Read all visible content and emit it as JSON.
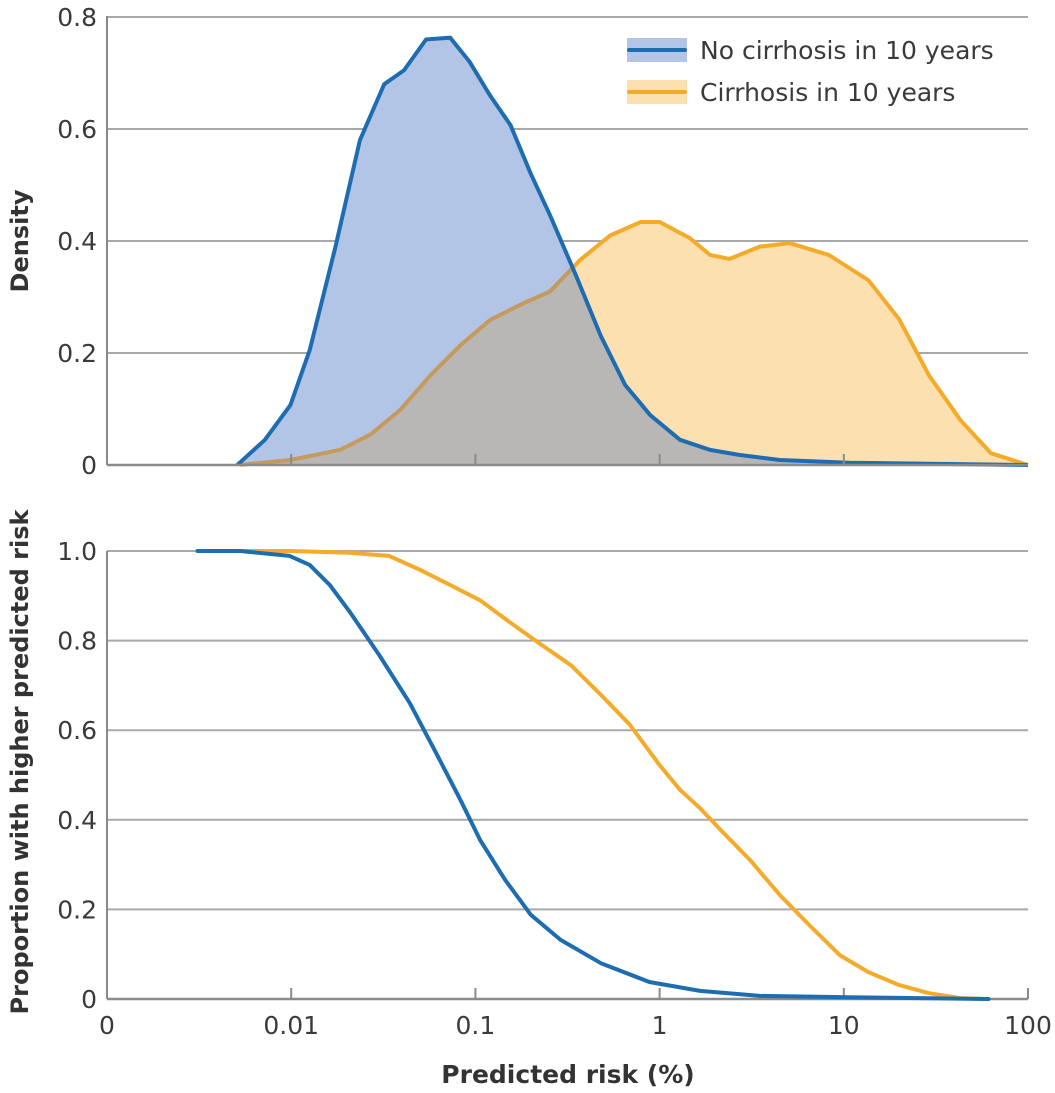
{
  "colors": {
    "no_cirrhosis_line": "#1e6db0",
    "no_cirrhosis_fill": "#b3c5e6",
    "cirrhosis_line": "#f5ab2a",
    "cirrhosis_fill": "#fde0b0",
    "overlap_fill": "#b9b6b6",
    "grid": "#a9a9a9"
  },
  "chart_data": [
    {
      "type": "area",
      "title": "",
      "xlabel": "",
      "ylabel": "Density",
      "xscale": "log",
      "xlim": [
        0.001,
        100
      ],
      "ylim": [
        0,
        0.8
      ],
      "yticks": [
        0,
        0.2,
        0.4,
        0.6,
        0.8
      ],
      "ytick_labels": [
        "0",
        "0.2",
        "0.4",
        "0.6",
        "0.8"
      ],
      "grid": true,
      "legend": {
        "position": "top-right",
        "entries": [
          "No cirrhosis in 10 years",
          "Cirrhosis in 10 years"
        ]
      },
      "series": [
        {
          "name": "No cirrhosis in 10 years",
          "x": [
            0.0051,
            0.0072,
            0.0099,
            0.0126,
            0.0174,
            0.0236,
            0.032,
            0.041,
            0.054,
            0.073,
            0.093,
            0.12,
            0.155,
            0.2,
            0.254,
            0.35,
            0.48,
            0.65,
            0.89,
            1.29,
            1.88,
            2.7,
            4.5,
            10.7,
            100
          ],
          "y": [
            0,
            0.045,
            0.107,
            0.205,
            0.39,
            0.58,
            0.68,
            0.705,
            0.76,
            0.763,
            0.72,
            0.66,
            0.607,
            0.52,
            0.446,
            0.34,
            0.23,
            0.143,
            0.089,
            0.045,
            0.027,
            0.018,
            0.009,
            0.004,
            0
          ]
        },
        {
          "name": "Cirrhosis in 10 years",
          "x": [
            0.0053,
            0.0099,
            0.0184,
            0.0268,
            0.039,
            0.057,
            0.083,
            0.12,
            0.175,
            0.254,
            0.37,
            0.54,
            0.79,
            1.0,
            1.46,
            1.88,
            2.4,
            3.5,
            5.1,
            8.3,
            13.6,
            20,
            29,
            43,
            63,
            100
          ],
          "y": [
            0,
            0.009,
            0.027,
            0.054,
            0.098,
            0.16,
            0.214,
            0.259,
            0.286,
            0.31,
            0.366,
            0.41,
            0.434,
            0.434,
            0.405,
            0.375,
            0.368,
            0.39,
            0.396,
            0.375,
            0.33,
            0.26,
            0.16,
            0.08,
            0.021,
            0
          ]
        }
      ]
    },
    {
      "type": "line",
      "title": "",
      "xlabel": "Predicted risk (%)",
      "ylabel": "Proportion with higher predicted risk",
      "xscale": "log",
      "xlim": [
        0.001,
        100
      ],
      "xticks": [
        0.001,
        0.01,
        0.1,
        1,
        10,
        100
      ],
      "xtick_labels": [
        "0",
        "0.01",
        "0.1",
        "1",
        "10",
        "100"
      ],
      "ylim": [
        0,
        1.0
      ],
      "yticks": [
        0,
        0.2,
        0.4,
        0.6,
        0.8,
        1.0
      ],
      "ytick_labels": [
        "0",
        "0.2",
        "0.4",
        "0.6",
        "0.8",
        "1.0"
      ],
      "grid": true,
      "series": [
        {
          "name": "No cirrhosis in 10 years",
          "x": [
            0.0031,
            0.0053,
            0.0098,
            0.0126,
            0.0162,
            0.0208,
            0.03,
            0.044,
            0.06,
            0.083,
            0.106,
            0.145,
            0.2,
            0.29,
            0.48,
            0.88,
            1.66,
            3.5,
            10.7,
            61
          ],
          "y": [
            1.0,
            1.0,
            0.989,
            0.969,
            0.924,
            0.864,
            0.768,
            0.661,
            0.556,
            0.444,
            0.355,
            0.266,
            0.188,
            0.132,
            0.08,
            0.038,
            0.018,
            0.007,
            0.004,
            0
          ]
        },
        {
          "name": "Cirrhosis in 10 years",
          "x": [
            0.0053,
            0.0099,
            0.0208,
            0.034,
            0.05,
            0.073,
            0.106,
            0.155,
            0.22,
            0.33,
            0.48,
            0.69,
            1.0,
            1.29,
            1.66,
            2.15,
            3.1,
            4.5,
            6.5,
            9.5,
            13.6,
            20,
            29,
            43,
            58
          ],
          "y": [
            1,
            1,
            0.996,
            0.989,
            0.958,
            0.924,
            0.89,
            0.84,
            0.795,
            0.745,
            0.679,
            0.612,
            0.522,
            0.467,
            0.426,
            0.377,
            0.31,
            0.232,
            0.165,
            0.098,
            0.06,
            0.031,
            0.013,
            0.002,
            0
          ]
        }
      ]
    }
  ]
}
